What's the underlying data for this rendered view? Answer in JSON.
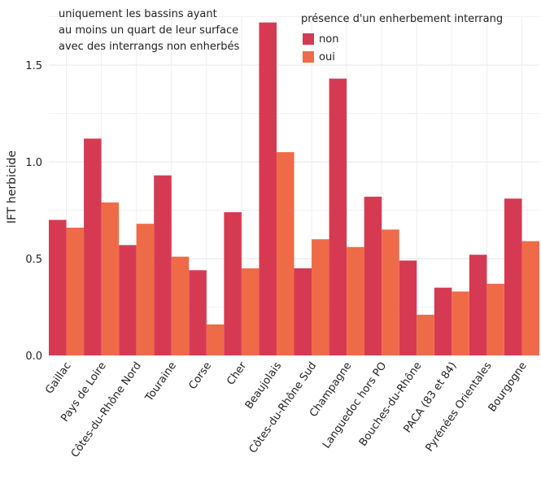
{
  "chart_data": {
    "type": "bar",
    "annotation": [
      "uniquement les bassins ayant",
      "au moins un quart de leur surface",
      "avec des interrangs non enherbés"
    ],
    "ylabel": "IFT herbicide",
    "xlabel": "",
    "ylim": [
      0,
      1.75
    ],
    "yticks": [
      "0.0",
      "0.5",
      "1.0",
      "1.5"
    ],
    "ytick_values": [
      0,
      0.5,
      1.0,
      1.5
    ],
    "grid": true,
    "legend": {
      "title": "présence d'un enherbement interrang",
      "placement": "top-right",
      "items": [
        "non",
        "oui"
      ]
    },
    "categories": [
      "Gaillac",
      "Pays de Loire",
      "Côtes-du-Rhône Nord",
      "Touraine",
      "Corse",
      "Cher",
      "Beaujolais",
      "Côtes-du-Rhône Sud",
      "Champagne",
      "Languedoc hors PO",
      "Bouches-du-Rhône",
      "PACA (83 et 84)",
      "Pyrénées Orientales",
      "Bourgogne"
    ],
    "series": [
      {
        "name": "non",
        "color": "#d63a53",
        "values": [
          0.7,
          1.12,
          0.57,
          0.93,
          0.44,
          0.74,
          1.72,
          0.45,
          1.43,
          0.82,
          0.49,
          0.35,
          0.52,
          0.81
        ]
      },
      {
        "name": "oui",
        "color": "#ef6b48",
        "values": [
          0.66,
          0.79,
          0.68,
          0.51,
          0.16,
          0.45,
          1.05,
          0.6,
          0.56,
          0.65,
          0.21,
          0.33,
          0.37,
          0.59
        ]
      }
    ]
  }
}
